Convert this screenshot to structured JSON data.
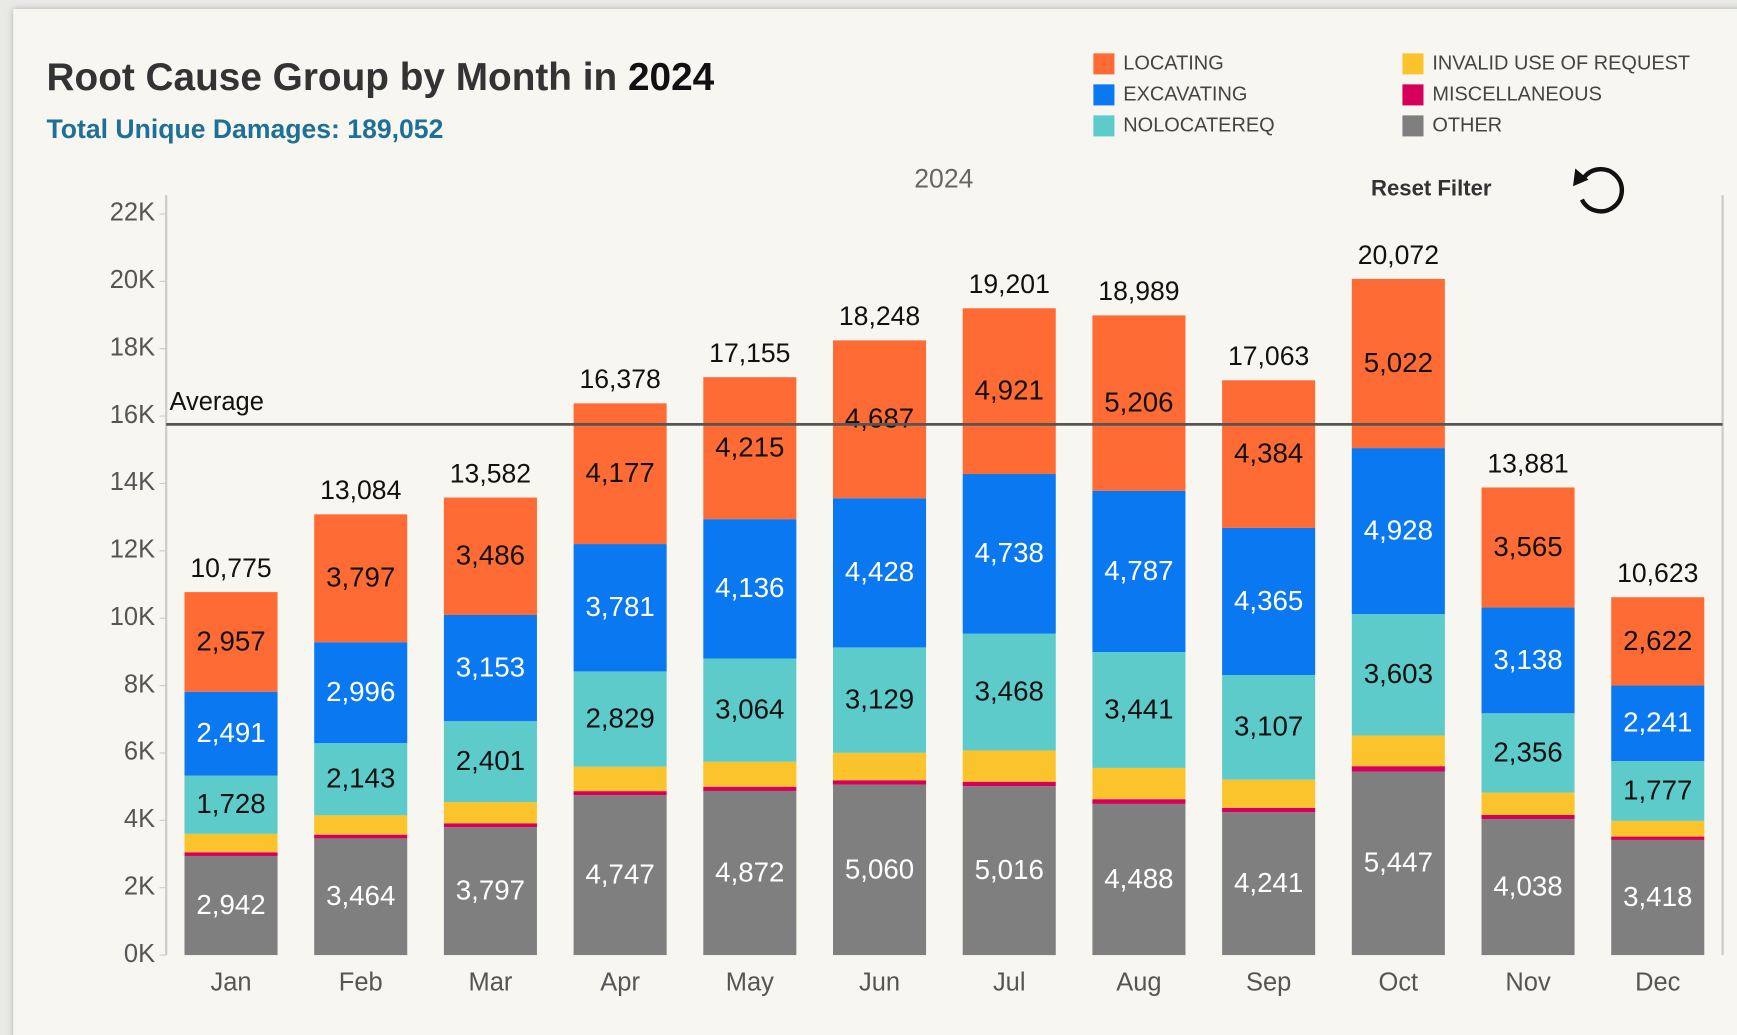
{
  "chart_data": {
    "type": "stacked_bar",
    "title": "Root Cause Group by Month in",
    "title_year": "2024",
    "subtitle": "Total Unique Damages: 189,052",
    "column_header": "2024",
    "reset_label": "Reset Filter",
    "categories": [
      "Jan",
      "Feb",
      "Mar",
      "Apr",
      "May",
      "Jun",
      "Jul",
      "Aug",
      "Sep",
      "Oct",
      "Nov",
      "Dec"
    ],
    "series": [
      {
        "name": "OTHER",
        "color": "#7f7f7f",
        "label_color": "#ffffff",
        "values": [
          2942,
          3464,
          3797,
          4747,
          4872,
          5060,
          5016,
          4488,
          4241,
          5447,
          4038,
          3418
        ],
        "value_labels": [
          "2,942",
          "3,464",
          "3,797",
          "4,747",
          "4,872",
          "5,060",
          "5,016",
          "4,488",
          "4,241",
          "5,447",
          "4,038",
          "3,418"
        ]
      },
      {
        "name": "MISCELLANEOUS",
        "color": "#d6005c",
        "values": [
          110,
          110,
          115,
          120,
          125,
          130,
          130,
          140,
          130,
          160,
          120,
          100
        ]
      },
      {
        "name": "INVALID USE OF REQUEST",
        "color": "#fcc42c",
        "values": [
          547,
          574,
          630,
          724,
          743,
          814,
          928,
          927,
          836,
          912,
          664,
          465
        ]
      },
      {
        "name": "NOLOCATEREQ",
        "color": "#5ecbcb",
        "label_color": "#111111",
        "values": [
          1728,
          2143,
          2401,
          2829,
          3064,
          3129,
          3468,
          3441,
          3107,
          3603,
          2356,
          1777
        ],
        "value_labels": [
          "1,728",
          "2,143",
          "2,401",
          "2,829",
          "3,064",
          "3,129",
          "3,468",
          "3,441",
          "3,107",
          "3,603",
          "2,356",
          "1,777"
        ]
      },
      {
        "name": "EXCAVATING",
        "color": "#0a78f0",
        "label_color": "#ffffff",
        "values": [
          2491,
          2996,
          3153,
          3781,
          4136,
          4428,
          4738,
          4787,
          4365,
          4928,
          3138,
          2241
        ],
        "value_labels": [
          "2,491",
          "2,996",
          "3,153",
          "3,781",
          "4,136",
          "4,428",
          "4,738",
          "4,787",
          "4,365",
          "4,928",
          "3,138",
          "2,241"
        ]
      },
      {
        "name": "LOCATING",
        "color": "#ff6b35",
        "label_color": "#111111",
        "values": [
          2957,
          3797,
          3486,
          4177,
          4215,
          4687,
          4921,
          5206,
          4384,
          5022,
          3565,
          2622
        ],
        "value_labels": [
          "2,957",
          "3,797",
          "3,486",
          "4,177",
          "4,215",
          "4,687",
          "4,921",
          "5,206",
          "4,384",
          "5,022",
          "3,565",
          "2,622"
        ]
      }
    ],
    "totals": [
      10775,
      13084,
      13582,
      16378,
      17155,
      18248,
      19201,
      18989,
      17063,
      20072,
      13881,
      10623
    ],
    "total_labels": [
      "10,775",
      "13,084",
      "13,582",
      "16,378",
      "17,155",
      "18,248",
      "19,201",
      "18,989",
      "17,063",
      "20,072",
      "13,881",
      "10,623"
    ],
    "average": {
      "label": "Average",
      "value": 15754
    },
    "ylim": [
      0,
      22000
    ],
    "yticks": [
      {
        "value": 0,
        "label": "0K"
      },
      {
        "value": 2000,
        "label": "2K"
      },
      {
        "value": 4000,
        "label": "4K"
      },
      {
        "value": 6000,
        "label": "6K"
      },
      {
        "value": 8000,
        "label": "8K"
      },
      {
        "value": 10000,
        "label": "10K"
      },
      {
        "value": 12000,
        "label": "12K"
      },
      {
        "value": 14000,
        "label": "14K"
      },
      {
        "value": 16000,
        "label": "16K"
      },
      {
        "value": 18000,
        "label": "18K"
      },
      {
        "value": 20000,
        "label": "20K"
      },
      {
        "value": 22000,
        "label": "22K"
      }
    ],
    "legend_order": [
      5,
      4,
      3,
      2,
      1,
      0
    ]
  }
}
